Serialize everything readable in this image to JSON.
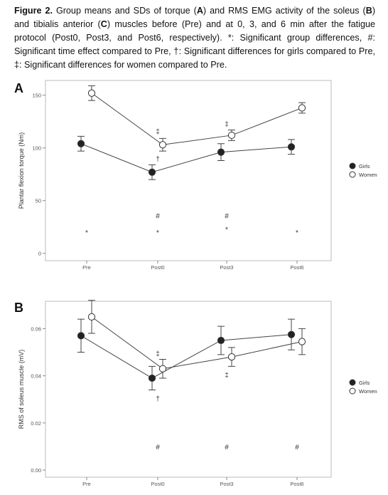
{
  "caption": [
    "Figure 2.",
    " Group means and SDs of torque (",
    "A",
    ") and RMS EMG activity of the soleus (",
    "B",
    ") and tibialis anterior (",
    "C",
    ") muscles before (Pre) and at 0, 3, and 6 min after the fatigue protocol (Post0, Post3, and Post6, respectively). *: Significant group differences, #: Significant time effect compared to Pre, †: Significant differences for girls compared to Pre, ‡: Significant differences for women compared to Pre."
  ],
  "chart_data": [
    {
      "type": "line",
      "panel": "A",
      "y_label": "Plantar flexion torque (Nm)",
      "categories": [
        "Pre",
        "Post0",
        "Post3",
        "Post6"
      ],
      "series": [
        {
          "name": "Girls",
          "color": "#222222",
          "values": [
            104,
            77,
            96,
            101
          ],
          "errors": [
            7,
            7,
            8,
            7
          ]
        },
        {
          "name": "Women",
          "color": "#ffffff",
          "values": [
            152,
            103,
            112,
            138
          ],
          "errors": [
            7,
            6,
            5,
            5
          ]
        }
      ],
      "ylim": [
        -7,
        164
      ],
      "yticks": [
        0,
        50,
        100,
        150
      ],
      "annotations": [
        {
          "text": "*",
          "x": "Pre",
          "y": 20
        },
        {
          "text": "*",
          "x": "Post0",
          "y": 20
        },
        {
          "text": "*",
          "x": "Post3",
          "y": 23
        },
        {
          "text": "*",
          "x": "Post6",
          "y": 20
        },
        {
          "text": "#",
          "x": "Post0",
          "y": 36
        },
        {
          "text": "#",
          "x": "Post3",
          "y": 36
        },
        {
          "text": "†",
          "x": "Post0",
          "y": 90
        },
        {
          "text": "‡",
          "x": "Post0",
          "y": 116
        },
        {
          "text": "‡",
          "x": "Post3",
          "y": 123
        }
      ]
    },
    {
      "type": "line",
      "panel": "B",
      "y_label": "RMS of soleus muscle (mV)",
      "categories": [
        "Pre",
        "Post0",
        "Post3",
        "Post6"
      ],
      "series": [
        {
          "name": "Girls",
          "color": "#222222",
          "values": [
            0.057,
            0.039,
            0.055,
            0.0575
          ],
          "errors": [
            0.007,
            0.005,
            0.006,
            0.0065
          ]
        },
        {
          "name": "Women",
          "color": "#ffffff",
          "values": [
            0.065,
            0.043,
            0.048,
            0.0545
          ],
          "errors": [
            0.007,
            0.004,
            0.004,
            0.0055
          ]
        }
      ],
      "ylim": [
        -0.003,
        0.0716
      ],
      "yticks": [
        {
          "value": 0,
          "label": "0.00"
        },
        0.02,
        0.04,
        0.06
      ],
      "annotations": [
        {
          "text": "‡",
          "x": "Post0",
          "y": 0.0495
        },
        {
          "text": "†",
          "x": "Post0",
          "y": 0.0305
        },
        {
          "text": "‡",
          "x": "Post3",
          "y": 0.0405
        },
        {
          "text": "#",
          "x": "Post0",
          "y": 0.01
        },
        {
          "text": "#",
          "x": "Post3",
          "y": 0.01
        },
        {
          "text": "#",
          "x": "Post6",
          "y": 0.01
        }
      ]
    }
  ]
}
